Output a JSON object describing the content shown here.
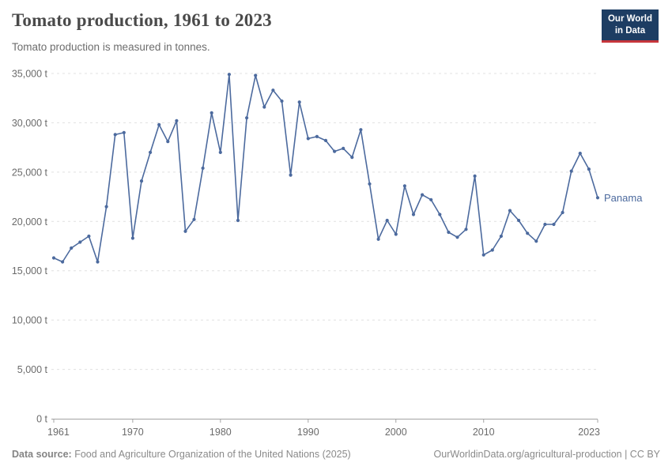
{
  "header": {
    "title": "Tomato production, 1961 to 2023",
    "subtitle": "Tomato production is measured in tonnes.",
    "logo": {
      "line1": "Our World",
      "line2": "in Data"
    }
  },
  "chart_data": {
    "type": "line",
    "title": "Tomato production, 1961 to 2023",
    "subtitle": "Tomato production is measured in tonnes.",
    "xlabel": "",
    "ylabel": "tonnes",
    "xlim": [
      1961,
      2023
    ],
    "ylim": [
      0,
      35000
    ],
    "x_ticks": [
      1961,
      1970,
      1980,
      1990,
      2000,
      2010,
      2023
    ],
    "y_ticks": [
      0,
      5000,
      10000,
      15000,
      20000,
      25000,
      30000,
      35000
    ],
    "y_tick_suffix": " t",
    "grid": "horizontal-dashed",
    "legend": "end-of-line-label",
    "series": [
      {
        "name": "Panama",
        "color": "#4c6a9e",
        "x": [
          1961,
          1962,
          1963,
          1964,
          1965,
          1966,
          1967,
          1968,
          1969,
          1970,
          1971,
          1972,
          1973,
          1974,
          1975,
          1976,
          1977,
          1978,
          1979,
          1980,
          1981,
          1982,
          1983,
          1984,
          1985,
          1986,
          1987,
          1988,
          1989,
          1990,
          1991,
          1992,
          1993,
          1994,
          1995,
          1996,
          1997,
          1998,
          1999,
          2000,
          2001,
          2002,
          2003,
          2004,
          2005,
          2006,
          2007,
          2008,
          2009,
          2010,
          2011,
          2012,
          2013,
          2014,
          2015,
          2016,
          2017,
          2018,
          2019,
          2020,
          2021,
          2022,
          2023
        ],
        "values": [
          16300,
          15900,
          17300,
          17900,
          18500,
          15900,
          21500,
          28800,
          29000,
          18300,
          24100,
          27000,
          29800,
          28100,
          30200,
          19000,
          20200,
          25400,
          31000,
          27000,
          34900,
          20100,
          30500,
          34800,
          31600,
          33300,
          32200,
          24700,
          32100,
          28400,
          28600,
          28200,
          27100,
          27400,
          26500,
          29300,
          23800,
          18200,
          20100,
          18700,
          23600,
          20700,
          22700,
          22200,
          20700,
          18900,
          18400,
          19200,
          24600,
          16600,
          17100,
          18500,
          21100,
          20100,
          18800,
          18000,
          19700,
          19700,
          20900,
          25100,
          26900,
          25300,
          22400
        ]
      }
    ]
  },
  "footer": {
    "source_label": "Data source:",
    "source_text": " Food and Agriculture Organization of the United Nations (2025)",
    "rights_text": "OurWorldinData.org/agricultural-production | CC BY"
  },
  "colors": {
    "series_blue": "#4c6a9e",
    "grid": "#e0e0e0",
    "axis": "#a3a3a3",
    "tick_text": "#6b6b6b",
    "footer_text": "#8a8a8a",
    "logo_navy": "#1d3d63",
    "logo_red": "#c6363c",
    "title_text": "#4a4a4a"
  }
}
